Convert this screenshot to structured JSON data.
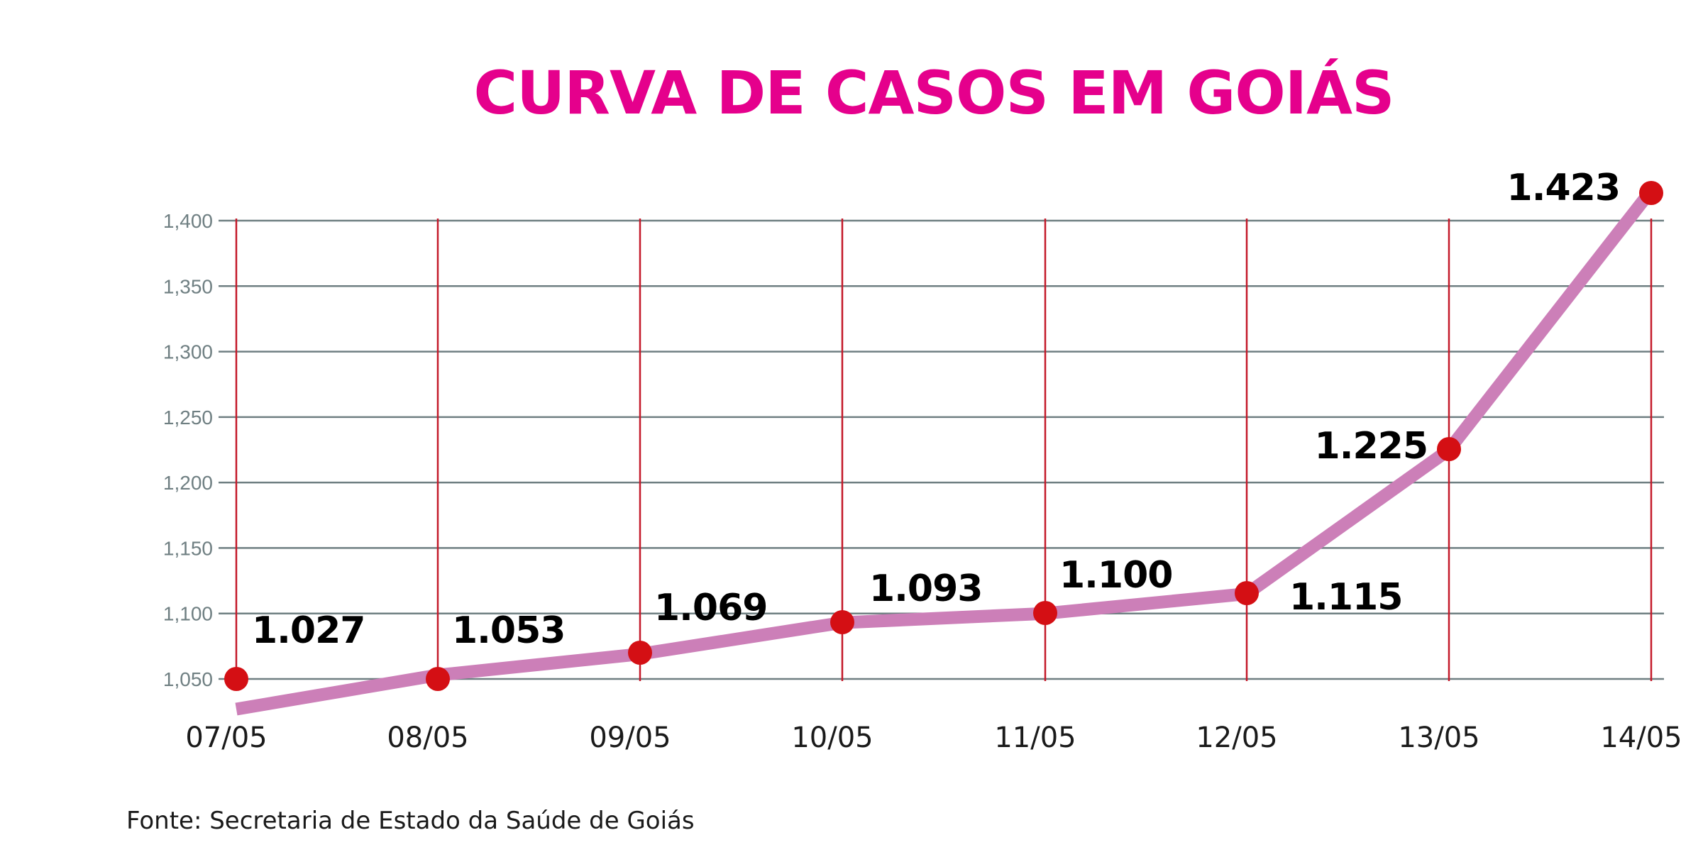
{
  "chart_data": {
    "type": "line",
    "title": "CURVA DE CASOS EM GOIÁS",
    "source": "Fonte: Secretaria de Estado da Saúde de Goiás",
    "categories": [
      "07/05",
      "08/05",
      "09/05",
      "10/05",
      "11/05",
      "12/05",
      "13/05",
      "14/05"
    ],
    "values": [
      1027,
      1053,
      1069,
      1093,
      1100,
      1115,
      1225,
      1423
    ],
    "data_labels": [
      "1.027",
      "1.053",
      "1.069",
      "1.093",
      "1.100",
      "1.115",
      "1.225",
      "1.423"
    ],
    "y_ticks": [
      1050,
      1100,
      1150,
      1200,
      1250,
      1300,
      1350,
      1400
    ],
    "y_tick_labels": [
      "1,050",
      "1,100",
      "1,150",
      "1,200",
      "1,250",
      "1,300",
      "1,350",
      "1,400"
    ],
    "ylim": [
      1050,
      1400
    ],
    "grid": true,
    "xlabel": "",
    "ylabel": "",
    "colors": {
      "title": "#e5008c",
      "line": "#cc7fb8",
      "marker": "#d40f14",
      "vertical_grid": "#c41a2a",
      "horizontal_grid": "#6f7f82"
    }
  }
}
